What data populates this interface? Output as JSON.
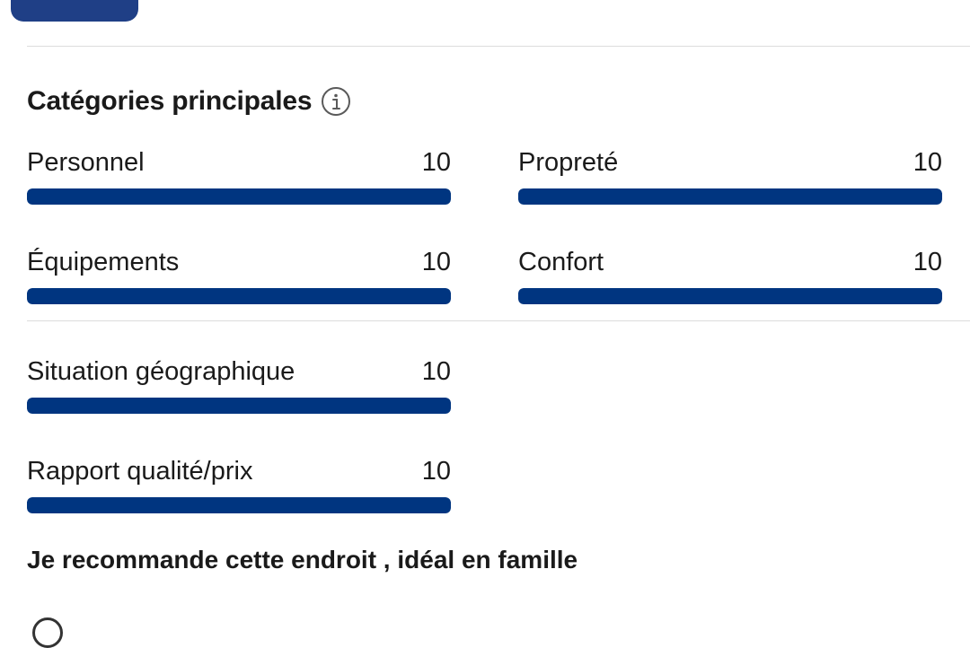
{
  "section": {
    "title": "Catégories principales",
    "info_icon": "info-circle-icon"
  },
  "categories": [
    {
      "label": "Personnel",
      "score": "10",
      "fraction": 1.0
    },
    {
      "label": "Propreté",
      "score": "10",
      "fraction": 1.0
    },
    {
      "label": "Équipements",
      "score": "10",
      "fraction": 1.0
    },
    {
      "label": "Confort",
      "score": "10",
      "fraction": 1.0
    },
    {
      "label": "Situation géographique",
      "score": "10",
      "fraction": 1.0
    },
    {
      "label": "Rapport qualité/prix",
      "score": "10",
      "fraction": 1.0
    }
  ],
  "review": {
    "title": "Je recommande cette endroit , idéal en famille"
  },
  "colors": {
    "accent": "#003580",
    "button": "#1f3f86",
    "divider": "#dcdcdc"
  }
}
